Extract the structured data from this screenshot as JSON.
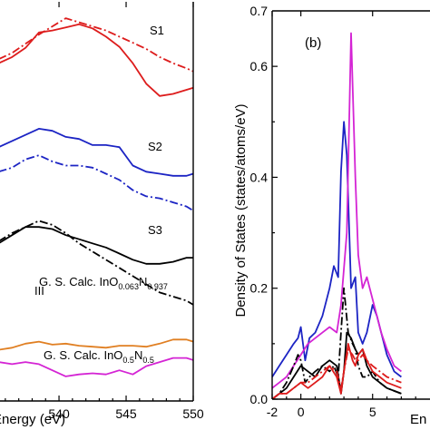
{
  "chart_data": [
    {
      "type": "line",
      "panel": "left",
      "xlabel": "Energy (eV)",
      "xlabel_visible": "Energy (eV)",
      "xlim": [
        535.4,
        550
      ],
      "xticks": [
        540,
        545,
        550
      ],
      "ylabel": "",
      "yticks": [],
      "y_scale": "offset arbitrary units (no y tick labels)",
      "x": [
        535.5,
        536.5,
        537.5,
        538.5,
        539.5,
        540.5,
        541.5,
        542.5,
        543.5,
        544.5,
        545.5,
        546.5,
        547.5,
        548.5,
        549.5,
        550
      ],
      "annotations": [
        {
          "text": "S1"
        },
        {
          "text": "S2"
        },
        {
          "text": "S3"
        },
        {
          "text": "III"
        }
      ],
      "calc_labels": [
        {
          "prefix": "G. S. Calc. InO",
          "sub1": "0.063",
          "mid": "N",
          "sub2": "0.937"
        },
        {
          "prefix": "G. S. Calc. InO",
          "sub1": "0.5",
          "mid": "N",
          "sub2": "0.5"
        }
      ],
      "series": [
        {
          "name": "S1",
          "style": "solid",
          "color": "#dd1c1c",
          "values": [
            0.8,
            0.83,
            0.875,
            0.95,
            0.96,
            0.975,
            0.99,
            0.97,
            0.93,
            0.88,
            0.8,
            0.7,
            0.64,
            0.65,
            0.67,
            0.68
          ]
        },
        {
          "name": "",
          "style": "dashdot",
          "color": "#dd1c1c",
          "values": [
            0.82,
            0.85,
            0.895,
            0.94,
            0.98,
            1.02,
            1.0,
            0.98,
            0.96,
            0.93,
            0.9,
            0.87,
            0.83,
            0.8,
            0.775,
            0.76
          ]
        },
        {
          "name": "S2",
          "style": "solid",
          "color": "#1c24c4",
          "values": [
            0.39,
            0.42,
            0.45,
            0.48,
            0.47,
            0.44,
            0.43,
            0.4,
            0.4,
            0.39,
            0.3,
            0.27,
            0.26,
            0.25,
            0.25,
            0.26
          ]
        },
        {
          "name": "",
          "style": "dashdot",
          "color": "#1c24c4",
          "values": [
            0.27,
            0.29,
            0.33,
            0.35,
            0.32,
            0.3,
            0.3,
            0.29,
            0.26,
            0.23,
            0.18,
            0.15,
            0.14,
            0.12,
            0.1,
            0.08
          ]
        },
        {
          "name": "S3",
          "style": "solid",
          "color": "#000000",
          "values": [
            -0.08,
            -0.04,
            0.0,
            0.0,
            -0.01,
            -0.04,
            -0.06,
            -0.08,
            -0.1,
            -0.13,
            -0.16,
            -0.18,
            -0.18,
            -0.17,
            -0.15,
            -0.15
          ]
        },
        {
          "name": "",
          "style": "dashdot",
          "color": "#000000",
          "values": [
            -0.07,
            -0.03,
            0.0,
            0.03,
            0.01,
            -0.03,
            -0.08,
            -0.12,
            -0.16,
            -0.2,
            -0.24,
            -0.28,
            -0.32,
            -0.34,
            -0.36,
            -0.38
          ]
        },
        {
          "name": "",
          "style": "solid",
          "color": "#e07f22",
          "values": [
            -0.6,
            -0.59,
            -0.57,
            -0.56,
            -0.575,
            -0.57,
            -0.58,
            -0.585,
            -0.59,
            -0.58,
            -0.58,
            -0.585,
            -0.57,
            -0.55,
            -0.55,
            -0.56
          ]
        },
        {
          "name": "",
          "style": "solid",
          "color": "#d424d4",
          "values": [
            -0.66,
            -0.67,
            -0.66,
            -0.67,
            -0.7,
            -0.73,
            -0.72,
            -0.715,
            -0.72,
            -0.7,
            -0.72,
            -0.68,
            -0.66,
            -0.64,
            -0.64,
            -0.65
          ]
        }
      ]
    },
    {
      "type": "line",
      "panel": "right",
      "panel_label": "(b)",
      "xlabel": "En",
      "ylabel": "Density of States (states/atoms/eV)",
      "xlim": [
        -2,
        9
      ],
      "ylim": [
        0,
        0.7
      ],
      "xticks": [
        -2,
        0,
        5
      ],
      "yticks": [
        0.0,
        0.2,
        0.4,
        0.6
      ],
      "ytick_labels": [
        "0.0",
        "0.2",
        "0.4",
        "0.6"
      ],
      "ytick_top_label": "0.7",
      "series": [
        {
          "name": "",
          "style": "solid",
          "color": "#1c24c4",
          "x": [
            -2,
            -1.5,
            -1,
            -0.5,
            -0.2,
            0,
            0.3,
            0.6,
            1,
            1.5,
            2,
            2.3,
            2.6,
            2.8,
            3.0,
            3.2,
            3.5,
            3.8,
            4.0,
            4.3,
            4.6,
            5.0,
            5.3,
            5.6,
            6.0,
            6.5,
            7.0
          ],
          "values": [
            0.04,
            0.06,
            0.08,
            0.1,
            0.11,
            0.13,
            0.07,
            0.11,
            0.12,
            0.15,
            0.2,
            0.24,
            0.22,
            0.41,
            0.5,
            0.44,
            0.2,
            0.22,
            0.12,
            0.1,
            0.12,
            0.17,
            0.15,
            0.12,
            0.08,
            0.05,
            0.04
          ]
        },
        {
          "name": "",
          "style": "solid",
          "color": "#d424d4",
          "x": [
            -2,
            -1.5,
            -1,
            -0.5,
            0,
            0.5,
            1,
            1.5,
            2,
            2.5,
            2.8,
            3.2,
            3.5,
            3.8,
            4.0,
            4.3,
            4.6,
            5.0,
            5.3,
            5.6,
            6.0,
            6.5,
            7.0
          ],
          "values": [
            0.02,
            0.03,
            0.04,
            0.06,
            0.08,
            0.1,
            0.11,
            0.12,
            0.13,
            0.12,
            0.17,
            0.3,
            0.66,
            0.4,
            0.26,
            0.2,
            0.22,
            0.18,
            0.15,
            0.12,
            0.09,
            0.06,
            0.05
          ]
        },
        {
          "name": "",
          "style": "dashdot",
          "color": "#000000",
          "x": [
            -2,
            -1.5,
            -1,
            -0.5,
            -0.2,
            0,
            0.3,
            0.6,
            1,
            1.5,
            2,
            2.3,
            2.6,
            2.8,
            3.0,
            3.3,
            3.6,
            3.8,
            4.0,
            4.3,
            4.6,
            5.0,
            5.5,
            6.0,
            7.0
          ],
          "values": [
            0.0,
            0.01,
            0.03,
            0.06,
            0.08,
            0.07,
            0.03,
            0.04,
            0.05,
            0.06,
            0.05,
            0.06,
            0.04,
            0.12,
            0.2,
            0.12,
            0.1,
            0.09,
            0.06,
            0.04,
            0.04,
            0.05,
            0.03,
            0.02,
            0.01
          ]
        },
        {
          "name": "",
          "style": "solid",
          "color": "#000000",
          "x": [
            -2,
            -1.5,
            -1,
            -0.5,
            0,
            0.5,
            1,
            1.5,
            2,
            2.5,
            2.8,
            3.0,
            3.2,
            3.5,
            3.8,
            4.0,
            4.3,
            4.6,
            5.0,
            5.5,
            6.0,
            7.0
          ],
          "values": [
            0.0,
            0.01,
            0.02,
            0.04,
            0.06,
            0.05,
            0.04,
            0.06,
            0.07,
            0.06,
            0.01,
            0.05,
            0.12,
            0.11,
            0.09,
            0.08,
            0.09,
            0.06,
            0.04,
            0.03,
            0.02,
            0.01
          ]
        },
        {
          "name": "",
          "style": "solid",
          "color": "#dd1c1c",
          "x": [
            -2,
            -1.5,
            -1,
            -0.5,
            0,
            0.5,
            1,
            1.5,
            2,
            2.5,
            2.8,
            3.0,
            3.3,
            3.6,
            3.8,
            4.0,
            4.3,
            4.6,
            5.0,
            5.5,
            6.0,
            7.0
          ],
          "values": [
            0.0,
            0.01,
            0.01,
            0.02,
            0.03,
            0.02,
            0.03,
            0.04,
            0.06,
            0.04,
            0.01,
            0.05,
            0.1,
            0.07,
            0.06,
            0.08,
            0.09,
            0.07,
            0.05,
            0.04,
            0.03,
            0.02
          ]
        },
        {
          "name": "",
          "style": "dashdot",
          "color": "#dd1c1c",
          "x": [
            -2,
            -1.5,
            -1,
            -0.5,
            0,
            0.5,
            1,
            1.5,
            2,
            2.5,
            2.8,
            3.0,
            3.3,
            3.6,
            3.8,
            4.0,
            4.3,
            4.6,
            5.0,
            5.5,
            6.0,
            7.0
          ],
          "values": [
            0.0,
            0.01,
            0.01,
            0.02,
            0.03,
            0.03,
            0.04,
            0.05,
            0.06,
            0.05,
            0.02,
            0.05,
            0.09,
            0.08,
            0.07,
            0.07,
            0.08,
            0.07,
            0.06,
            0.05,
            0.04,
            0.03
          ]
        }
      ]
    }
  ]
}
